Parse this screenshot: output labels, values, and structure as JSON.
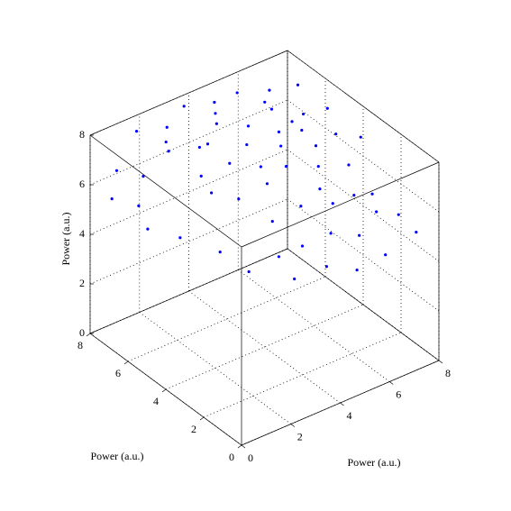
{
  "chart_data": {
    "type": "scatter3d",
    "x_label": "Power (a.u.)",
    "y_label": "Power (a.u.)",
    "z_label": "Power (a.u.)",
    "xlim": [
      0,
      8
    ],
    "ylim": [
      0,
      8
    ],
    "zlim": [
      0,
      8
    ],
    "xticks": [
      0,
      2,
      4,
      6,
      8
    ],
    "yticks": [
      0,
      2,
      4,
      6,
      8
    ],
    "zticks": [
      0,
      2,
      4,
      6,
      8
    ],
    "grid": true,
    "series": [
      {
        "color": "#0000ff",
        "x": [
          1.5,
          2.5,
          3.5,
          4.5,
          5.5,
          6.5,
          7.5,
          1.8,
          2.9,
          3.9,
          4.8,
          5.9,
          6.8,
          7.7,
          2.2,
          3.2,
          4.2,
          5.2,
          6.2,
          7.2,
          7.9,
          2.8,
          3.8,
          4.8,
          5.8,
          6.8,
          3.4,
          4.4,
          5.4,
          6.4,
          4.0,
          5.0,
          6.0,
          3.2,
          7.0,
          2.0,
          1.2,
          0.8,
          1.5,
          2.2,
          7.8,
          8.0,
          7.6,
          7.9,
          8.0,
          3.0,
          5.0,
          7.0,
          2.6,
          4.6,
          5.6,
          6.6,
          3.6,
          1.0,
          0.5,
          6.0,
          3.0,
          5.0,
          6.5,
          4.0
        ],
        "y": [
          7.5,
          7.2,
          7.6,
          7.3,
          7.4,
          7.0,
          6.8,
          6.2,
          6.0,
          6.4,
          5.9,
          6.1,
          5.6,
          5.5,
          5.0,
          4.8,
          5.2,
          4.7,
          4.9,
          4.4,
          4.0,
          3.8,
          3.6,
          3.9,
          3.5,
          3.2,
          2.8,
          2.6,
          2.9,
          2.4,
          2.0,
          1.8,
          1.6,
          2.2,
          2.0,
          7.8,
          7.0,
          6.0,
          5.2,
          4.0,
          7.5,
          6.5,
          3.0,
          2.0,
          1.2,
          7.9,
          7.9,
          7.9,
          3.0,
          1.5,
          1.2,
          1.0,
          1.9,
          7.9,
          7.5,
          3.0,
          5.5,
          5.5,
          6.5,
          7.0
        ],
        "z": [
          7.8,
          7.7,
          7.9,
          7.8,
          7.7,
          7.6,
          7.5,
          7.6,
          7.4,
          7.7,
          7.5,
          7.6,
          7.3,
          7.2,
          7.1,
          7.3,
          7.4,
          7.2,
          7.3,
          7.0,
          6.8,
          6.6,
          6.9,
          7.0,
          6.8,
          6.6,
          6.0,
          6.3,
          6.4,
          6.0,
          5.2,
          5.4,
          5.0,
          5.0,
          5.3,
          5.6,
          5.2,
          5.0,
          4.8,
          4.6,
          5.5,
          5.0,
          5.2,
          4.8,
          4.5,
          6.5,
          6.8,
          6.4,
          4.2,
          4.4,
          4.0,
          4.3,
          4.1,
          6.2,
          5.5,
          5.5,
          5.8,
          6.0,
          6.2,
          6.5
        ]
      }
    ]
  }
}
